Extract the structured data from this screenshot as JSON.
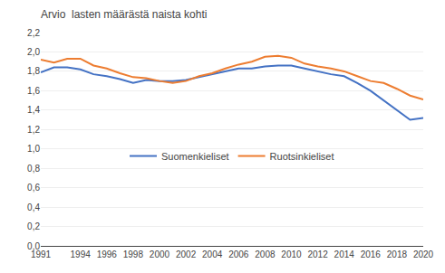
{
  "chart_data": {
    "type": "line",
    "ylabel": "Arvio  lasten määrästä naista kohti",
    "x": [
      1991,
      1992,
      1993,
      1994,
      1995,
      1996,
      1997,
      1998,
      1999,
      2000,
      2001,
      2002,
      2003,
      2004,
      2005,
      2006,
      2007,
      2008,
      2009,
      2010,
      2011,
      2012,
      2013,
      2014,
      2015,
      2016,
      2017,
      2018,
      2019,
      2020
    ],
    "series": [
      {
        "name": "Suomenkieliset",
        "color": "#4472C4",
        "values": [
          1.79,
          1.84,
          1.84,
          1.82,
          1.77,
          1.75,
          1.72,
          1.68,
          1.71,
          1.7,
          1.7,
          1.71,
          1.74,
          1.77,
          1.8,
          1.83,
          1.83,
          1.85,
          1.86,
          1.86,
          1.83,
          1.8,
          1.77,
          1.75,
          1.68,
          1.6,
          1.5,
          1.4,
          1.3,
          1.32
        ]
      },
      {
        "name": "Ruotsinkieliset",
        "color": "#ED7D31",
        "values": [
          1.92,
          1.89,
          1.93,
          1.93,
          1.86,
          1.83,
          1.78,
          1.74,
          1.73,
          1.7,
          1.68,
          1.7,
          1.75,
          1.78,
          1.83,
          1.87,
          1.9,
          1.95,
          1.96,
          1.94,
          1.88,
          1.85,
          1.83,
          1.8,
          1.75,
          1.7,
          1.68,
          1.62,
          1.55,
          1.51
        ]
      }
    ],
    "xlim": [
      1991,
      2020
    ],
    "xticks": [
      1991,
      1994,
      1996,
      1998,
      2000,
      2002,
      2004,
      2006,
      2008,
      2010,
      2012,
      2014,
      2016,
      2018,
      2020
    ],
    "ylim": [
      0.0,
      2.2
    ],
    "yticks": [
      {
        "value": 0.0,
        "label": "0,0"
      },
      {
        "value": 0.2,
        "label": "0,2"
      },
      {
        "value": 0.4,
        "label": "0,4"
      },
      {
        "value": 0.6,
        "label": "0,6"
      },
      {
        "value": 0.8,
        "label": "0,8"
      },
      {
        "value": 1.0,
        "label": "1,0"
      },
      {
        "value": 1.2,
        "label": "1,2"
      },
      {
        "value": 1.4,
        "label": "1,4"
      },
      {
        "value": 1.6,
        "label": "1,6"
      },
      {
        "value": 1.8,
        "label": "1,8"
      },
      {
        "value": 2.0,
        "label": "2,0"
      },
      {
        "value": 2.2,
        "label": "2,2"
      }
    ],
    "grid": "y",
    "legend": "lower center"
  }
}
